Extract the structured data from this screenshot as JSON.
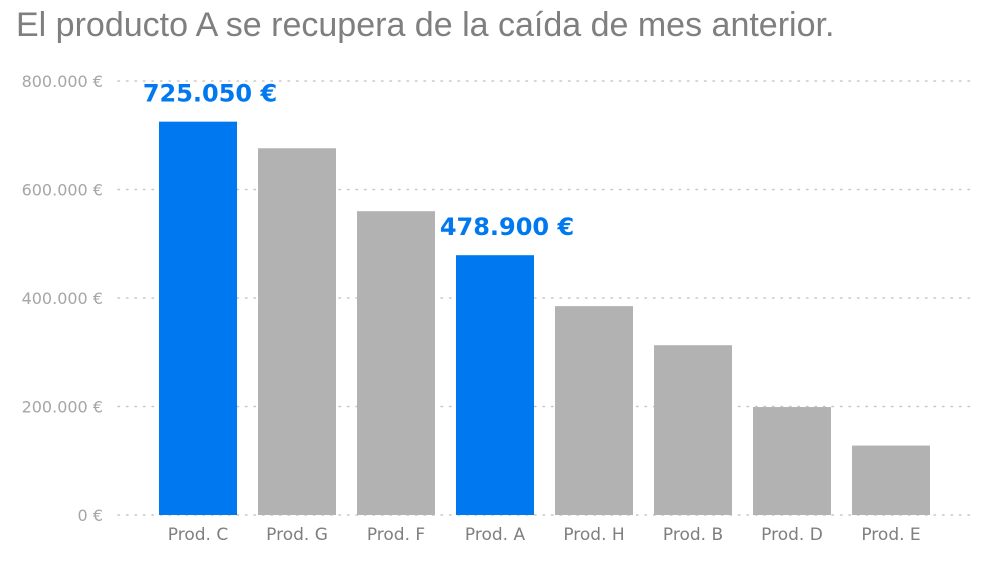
{
  "chart_data": {
    "type": "bar",
    "title": "El producto A se recupera de la caída de mes anterior.",
    "categories": [
      "Prod. C",
      "Prod. G",
      "Prod. F",
      "Prod. A",
      "Prod. H",
      "Prod. B",
      "Prod. D",
      "Prod. E"
    ],
    "values": [
      725050,
      676000,
      560000,
      478900,
      385000,
      313000,
      199000,
      128000
    ],
    "highlighted": [
      true,
      false,
      false,
      true,
      false,
      false,
      false,
      false
    ],
    "data_labels": [
      "725.050 €",
      "",
      "",
      "478.900 €",
      "",
      "",
      "",
      ""
    ],
    "yticks": [
      0,
      200000,
      400000,
      600000,
      800000
    ],
    "ytick_labels": [
      "0 €",
      "200.000 €",
      "400.000 €",
      "600.000 €",
      "800.000 €"
    ],
    "ylim": [
      0,
      800000
    ],
    "xlabel": "",
    "ylabel": "",
    "grid": true,
    "colors": {
      "highlight": "#0078f0",
      "base": "#b2b2b2",
      "title": "#7f7f7f",
      "tick": "#a6a6a6"
    }
  }
}
